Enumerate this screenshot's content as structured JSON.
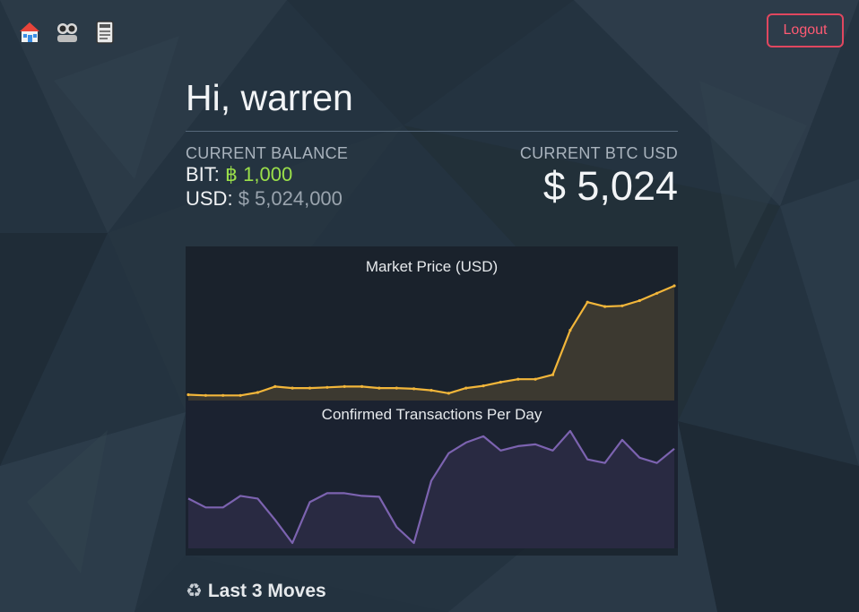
{
  "nav": {
    "items": [
      {
        "icon": "home-icon"
      },
      {
        "icon": "users-icon"
      },
      {
        "icon": "ledger-icon"
      }
    ]
  },
  "header": {
    "logout_label": "Logout"
  },
  "greeting": "Hi, warren",
  "balance": {
    "label": "CURRENT BALANCE",
    "bit_prefix": "BIT:",
    "bit_value": "฿ 1,000",
    "usd_prefix": "USD:",
    "usd_value": "$ 5,024,000"
  },
  "btc": {
    "label": "CURRENT BTC USD",
    "value": "$ 5,024"
  },
  "colors": {
    "accent_green": "#9be04a",
    "logout_red": "#e0475f",
    "market_line": "#f2b63a",
    "tx_line": "#7c63b0"
  },
  "chart_data": [
    {
      "type": "area",
      "title": "Market Price (USD)",
      "xlabel": "",
      "ylabel": "",
      "grid": false,
      "series": [
        {
          "values": [
            3,
            2,
            2,
            2,
            6,
            14,
            12,
            12,
            13,
            14,
            14,
            12,
            12,
            11,
            9,
            5,
            12,
            15,
            20,
            24,
            24,
            30,
            90,
            128,
            122,
            123,
            130,
            140,
            150
          ]
        }
      ]
    },
    {
      "type": "area",
      "title": "Confirmed Transactions Per Day",
      "xlabel": "",
      "ylabel": "",
      "grid": false,
      "series": [
        {
          "values": [
            52,
            42,
            42,
            55,
            52,
            28,
            2,
            48,
            58,
            58,
            55,
            54,
            20,
            2,
            72,
            103,
            115,
            122,
            106,
            111,
            113,
            106,
            128,
            96,
            92,
            118,
            98,
            92,
            108
          ]
        }
      ]
    }
  ],
  "moves": {
    "title": "Last 3 Moves",
    "icon": "recycle-icon"
  }
}
